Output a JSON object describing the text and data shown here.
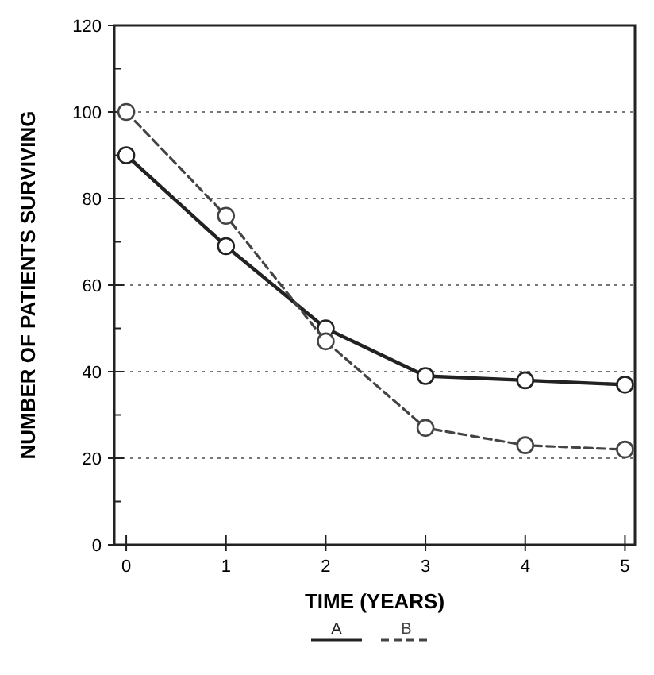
{
  "chart_data": {
    "type": "line",
    "xlabel": "TIME (YEARS)",
    "ylabel": "NUMBER OF PATIENTS SURVIVING",
    "x": [
      0,
      1,
      2,
      3,
      4,
      5
    ],
    "xlim": [
      -0.12,
      5.1
    ],
    "xticks": [
      0,
      1,
      2,
      3,
      4,
      5
    ],
    "ylim": [
      0,
      120
    ],
    "yticks": [
      0,
      20,
      40,
      60,
      80,
      100,
      120
    ],
    "grid": "y",
    "legend": "bottom",
    "marker": "circle",
    "series": [
      {
        "name": "A",
        "color": "#222222",
        "values": [
          90,
          69,
          50,
          39,
          38,
          37
        ],
        "line_style": "solid"
      },
      {
        "name": "B",
        "color": "#444444",
        "values": [
          100,
          76,
          47,
          27,
          23,
          22
        ],
        "line_style": "dashed"
      }
    ]
  }
}
